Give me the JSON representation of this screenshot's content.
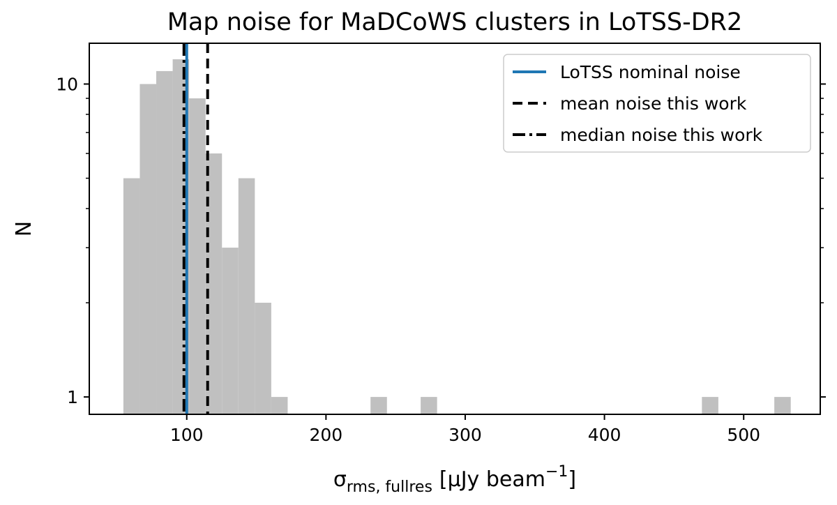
{
  "chart_data": {
    "type": "bar",
    "title": "Map noise for MaDCoWS clusters in LoTSS-DR2",
    "ylabel": "N",
    "xlabel": {
      "symbol": "σ",
      "subscript": "rms, fullres",
      "unit_prefix": "[μJy beam",
      "unit_exponent": "−1",
      "unit_suffix": "]"
    },
    "xlim": [
      30,
      555
    ],
    "ylim": [
      0.88,
      13.5
    ],
    "yscale": "log",
    "xticks": [
      100,
      200,
      300,
      400,
      500
    ],
    "xtick_labels": [
      "100",
      "200",
      "300",
      "400",
      "500"
    ],
    "yticks": [
      1,
      10
    ],
    "ytick_labels": [
      "1",
      "10"
    ],
    "bin_width": 11.8,
    "bins": [
      {
        "x0": 54.5,
        "count": 5
      },
      {
        "x0": 66.3,
        "count": 10
      },
      {
        "x0": 78.1,
        "count": 11
      },
      {
        "x0": 89.9,
        "count": 12
      },
      {
        "x0": 101.7,
        "count": 9
      },
      {
        "x0": 113.5,
        "count": 6
      },
      {
        "x0": 125.3,
        "count": 3
      },
      {
        "x0": 137.1,
        "count": 5
      },
      {
        "x0": 148.9,
        "count": 2
      },
      {
        "x0": 160.7,
        "count": 1
      },
      {
        "x0": 232.0,
        "count": 1
      },
      {
        "x0": 268.0,
        "count": 1
      },
      {
        "x0": 470.0,
        "count": 1
      },
      {
        "x0": 522.0,
        "count": 1
      }
    ],
    "vlines": [
      {
        "name": "LoTSS nominal noise",
        "x": 100,
        "color": "#1f77b4",
        "style": "solid"
      },
      {
        "name": "mean noise this work",
        "x": 115,
        "color": "#000000",
        "style": "dashed"
      },
      {
        "name": "median noise this work",
        "x": 98,
        "color": "#000000",
        "style": "dashdot"
      }
    ],
    "bar_color": "#c0c0c0",
    "legend_position": "upper right",
    "grid": false
  }
}
